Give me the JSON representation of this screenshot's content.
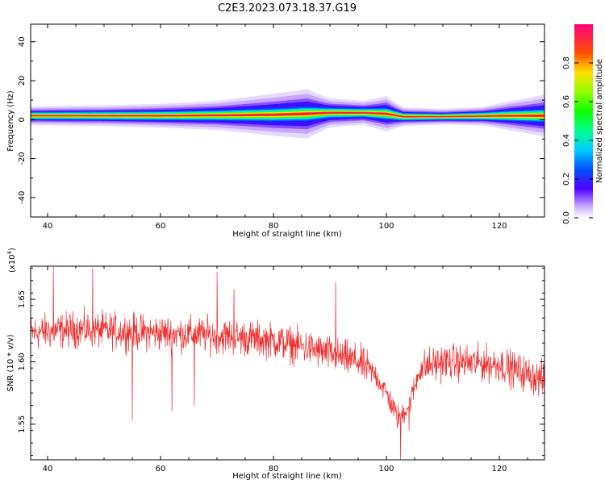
{
  "chart_data": [
    {
      "type": "heatmap",
      "title": "C2E3.2023.073.18.37.G19",
      "xlabel": "Height of straight line (km)",
      "ylabel": "Frequency (Hz)",
      "xlim": [
        37,
        128
      ],
      "ylim": [
        -50,
        49
      ],
      "x_ticks": [
        "40",
        "60",
        "80",
        "100",
        "120"
      ],
      "y_ticks": [
        "40",
        "20",
        "0",
        "-20",
        "-40"
      ],
      "ridge": [
        {
          "x": 37,
          "f": 2.0,
          "w": 3.0
        },
        {
          "x": 50,
          "f": 2.0,
          "w": 3.2
        },
        {
          "x": 60,
          "f": 2.0,
          "w": 3.5
        },
        {
          "x": 70,
          "f": 2.2,
          "w": 4.0
        },
        {
          "x": 80,
          "f": 2.5,
          "w": 5.0
        },
        {
          "x": 86,
          "f": 3.0,
          "w": 5.5
        },
        {
          "x": 90,
          "f": 3.5,
          "w": 4.0
        },
        {
          "x": 96,
          "f": 3.5,
          "w": 3.5
        },
        {
          "x": 100,
          "f": 3.0,
          "w": 4.5
        },
        {
          "x": 103,
          "f": 1.5,
          "w": 3.0
        },
        {
          "x": 110,
          "f": 1.5,
          "w": 2.5
        },
        {
          "x": 117,
          "f": 1.8,
          "w": 3.0
        },
        {
          "x": 122,
          "f": 2.0,
          "w": 4.0
        },
        {
          "x": 128,
          "f": 2.0,
          "w": 5.0
        }
      ],
      "colorbar": {
        "label": "Normalized spectral amplitude",
        "ticks": [
          "0.0",
          "0.2",
          "0.4",
          "0.6",
          "0.8"
        ],
        "range": [
          0,
          1
        ]
      }
    },
    {
      "type": "line",
      "xlabel": "Height of straight line (km)",
      "ylabel": "SNR (10 * v/v)",
      "multiplier": "(x10",
      "multiplier_exp": "4",
      "multiplier_close": ")",
      "xlim": [
        37,
        128
      ],
      "ylim": [
        1.5215,
        1.6765
      ],
      "x_ticks": [
        "40",
        "60",
        "80",
        "100",
        "120"
      ],
      "y_ticks": [
        "1.65",
        "1.60",
        "1.55"
      ],
      "color": "#f03030",
      "trend": [
        [
          37,
          1.623
        ],
        [
          45,
          1.626
        ],
        [
          50,
          1.625
        ],
        [
          60,
          1.623
        ],
        [
          70,
          1.621
        ],
        [
          80,
          1.617
        ],
        [
          86,
          1.611
        ],
        [
          90,
          1.606
        ],
        [
          95,
          1.6
        ],
        [
          98,
          1.59
        ],
        [
          100,
          1.575
        ],
        [
          102,
          1.555
        ],
        [
          104,
          1.565
        ],
        [
          106,
          1.595
        ],
        [
          110,
          1.6
        ],
        [
          120,
          1.598
        ],
        [
          128,
          1.585
        ]
      ],
      "spikes": [
        [
          41,
          1.676
        ],
        [
          48,
          1.675
        ],
        [
          55,
          1.553
        ],
        [
          62,
          1.56
        ],
        [
          66,
          1.565
        ],
        [
          70,
          1.672
        ],
        [
          73,
          1.658
        ],
        [
          91,
          1.664
        ],
        [
          102.5,
          1.522
        ],
        [
          104,
          1.545
        ]
      ]
    }
  ]
}
